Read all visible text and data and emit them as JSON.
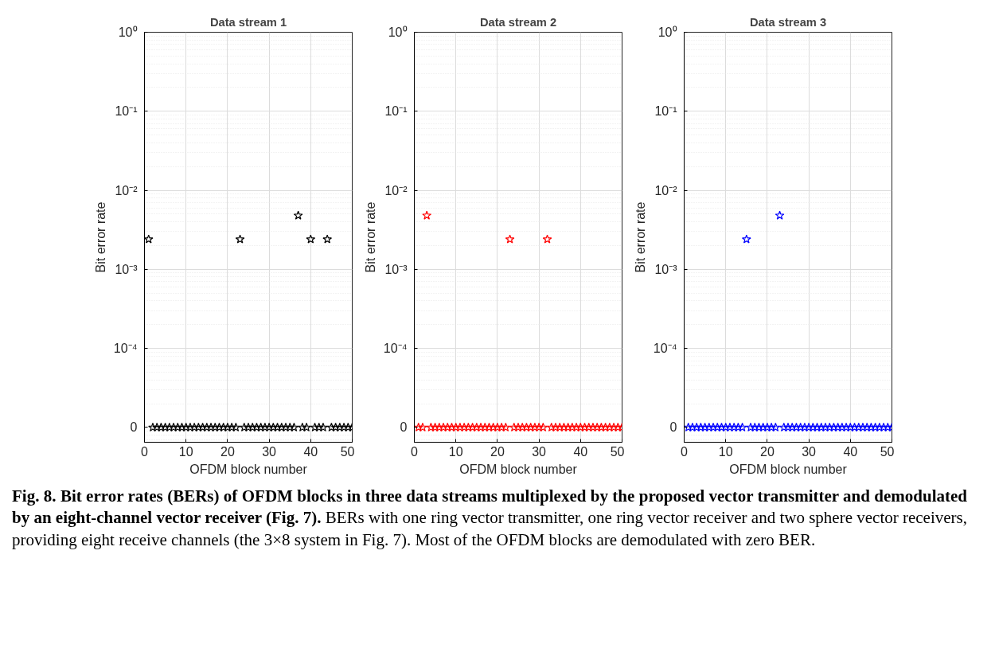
{
  "chart_data": [
    {
      "type": "scatter",
      "title": "Data stream 1",
      "xlabel": "OFDM block number",
      "ylabel": "Bit error rate",
      "log": "y",
      "grid": true,
      "marker": "star",
      "xlim": [
        0,
        50
      ],
      "xticks": [
        0,
        10,
        20,
        30,
        40,
        50
      ],
      "ylim": [
        6.5e-06,
        1
      ],
      "yticks": [
        {
          "value": 1e-05,
          "label": "0"
        },
        {
          "value": 0.0001,
          "label": "10⁻⁴"
        },
        {
          "value": 0.001,
          "label": "10⁻³"
        },
        {
          "value": 0.01,
          "label": "10⁻²"
        },
        {
          "value": 0.1,
          "label": "10⁻¹"
        },
        {
          "value": 1,
          "label": "10⁰"
        }
      ],
      "series": [
        {
          "color": "#000000",
          "x": [
            1,
            2,
            3,
            4,
            5,
            6,
            7,
            8,
            9,
            10,
            11,
            12,
            13,
            14,
            15,
            16,
            17,
            18,
            19,
            20,
            21,
            22,
            23,
            24,
            25,
            26,
            27,
            28,
            29,
            30,
            31,
            32,
            33,
            34,
            35,
            36,
            37,
            38,
            39,
            40,
            41,
            42,
            43,
            44,
            45,
            46,
            47,
            48,
            49,
            50
          ],
          "values": [
            0.0024,
            1e-05,
            1e-05,
            1e-05,
            1e-05,
            1e-05,
            1e-05,
            1e-05,
            1e-05,
            1e-05,
            1e-05,
            1e-05,
            1e-05,
            1e-05,
            1e-05,
            1e-05,
            1e-05,
            1e-05,
            1e-05,
            1e-05,
            1e-05,
            1e-05,
            0.0024,
            1e-05,
            1e-05,
            1e-05,
            1e-05,
            1e-05,
            1e-05,
            1e-05,
            1e-05,
            1e-05,
            1e-05,
            1e-05,
            1e-05,
            1e-05,
            0.0048,
            1e-05,
            1e-05,
            0.0024,
            1e-05,
            1e-05,
            1e-05,
            0.0024,
            1e-05,
            1e-05,
            1e-05,
            1e-05,
            1e-05,
            1e-05
          ]
        }
      ]
    },
    {
      "type": "scatter",
      "title": "Data stream 2",
      "xlabel": "OFDM block number",
      "ylabel": "Bit error rate",
      "log": "y",
      "grid": true,
      "marker": "star",
      "xlim": [
        0,
        50
      ],
      "xticks": [
        0,
        10,
        20,
        30,
        40,
        50
      ],
      "ylim": [
        6.5e-06,
        1
      ],
      "yticks": [
        {
          "value": 1e-05,
          "label": "0"
        },
        {
          "value": 0.0001,
          "label": "10⁻⁴"
        },
        {
          "value": 0.001,
          "label": "10⁻³"
        },
        {
          "value": 0.01,
          "label": "10⁻²"
        },
        {
          "value": 0.1,
          "label": "10⁻¹"
        },
        {
          "value": 1,
          "label": "10⁰"
        }
      ],
      "series": [
        {
          "color": "#ff0000",
          "x": [
            1,
            2,
            3,
            4,
            5,
            6,
            7,
            8,
            9,
            10,
            11,
            12,
            13,
            14,
            15,
            16,
            17,
            18,
            19,
            20,
            21,
            22,
            23,
            24,
            25,
            26,
            27,
            28,
            29,
            30,
            31,
            32,
            33,
            34,
            35,
            36,
            37,
            38,
            39,
            40,
            41,
            42,
            43,
            44,
            45,
            46,
            47,
            48,
            49,
            50
          ],
          "values": [
            1e-05,
            1e-05,
            0.0048,
            1e-05,
            1e-05,
            1e-05,
            1e-05,
            1e-05,
            1e-05,
            1e-05,
            1e-05,
            1e-05,
            1e-05,
            1e-05,
            1e-05,
            1e-05,
            1e-05,
            1e-05,
            1e-05,
            1e-05,
            1e-05,
            1e-05,
            0.0024,
            1e-05,
            1e-05,
            1e-05,
            1e-05,
            1e-05,
            1e-05,
            1e-05,
            1e-05,
            0.0024,
            1e-05,
            1e-05,
            1e-05,
            1e-05,
            1e-05,
            1e-05,
            1e-05,
            1e-05,
            1e-05,
            1e-05,
            1e-05,
            1e-05,
            1e-05,
            1e-05,
            1e-05,
            1e-05,
            1e-05,
            1e-05
          ]
        }
      ]
    },
    {
      "type": "scatter",
      "title": "Data stream 3",
      "xlabel": "OFDM block number",
      "ylabel": "Bit error rate",
      "log": "y",
      "grid": true,
      "marker": "star",
      "xlim": [
        0,
        50
      ],
      "xticks": [
        0,
        10,
        20,
        30,
        40,
        50
      ],
      "ylim": [
        6.5e-06,
        1
      ],
      "yticks": [
        {
          "value": 1e-05,
          "label": "0"
        },
        {
          "value": 0.0001,
          "label": "10⁻⁴"
        },
        {
          "value": 0.001,
          "label": "10⁻³"
        },
        {
          "value": 0.01,
          "label": "10⁻²"
        },
        {
          "value": 0.1,
          "label": "10⁻¹"
        },
        {
          "value": 1,
          "label": "10⁰"
        }
      ],
      "series": [
        {
          "color": "#0000ff",
          "x": [
            1,
            2,
            3,
            4,
            5,
            6,
            7,
            8,
            9,
            10,
            11,
            12,
            13,
            14,
            15,
            16,
            17,
            18,
            19,
            20,
            21,
            22,
            23,
            24,
            25,
            26,
            27,
            28,
            29,
            30,
            31,
            32,
            33,
            34,
            35,
            36,
            37,
            38,
            39,
            40,
            41,
            42,
            43,
            44,
            45,
            46,
            47,
            48,
            49,
            50
          ],
          "values": [
            1e-05,
            1e-05,
            1e-05,
            1e-05,
            1e-05,
            1e-05,
            1e-05,
            1e-05,
            1e-05,
            1e-05,
            1e-05,
            1e-05,
            1e-05,
            1e-05,
            0.0024,
            1e-05,
            1e-05,
            1e-05,
            1e-05,
            1e-05,
            1e-05,
            1e-05,
            0.0048,
            1e-05,
            1e-05,
            1e-05,
            1e-05,
            1e-05,
            1e-05,
            1e-05,
            1e-05,
            1e-05,
            1e-05,
            1e-05,
            1e-05,
            1e-05,
            1e-05,
            1e-05,
            1e-05,
            1e-05,
            1e-05,
            1e-05,
            1e-05,
            1e-05,
            1e-05,
            1e-05,
            1e-05,
            1e-05,
            1e-05,
            1e-05
          ]
        }
      ]
    },
    {
      "type": "other",
      "annotations": [
        "Fig. 8. Bit error rates (BERs) of OFDM blocks in three data streams multiplexed by the proposed vector transmitter and demodulated by an eight-channel vector receiver (Fig. 7).",
        "BERs with one ring vector transmitter, one ring vector receiver and two sphere vector receivers, providing eight receive channels (the 3×8 system in Fig. 7). Most of the OFDM blocks are demodulated with zero BER."
      ]
    }
  ]
}
